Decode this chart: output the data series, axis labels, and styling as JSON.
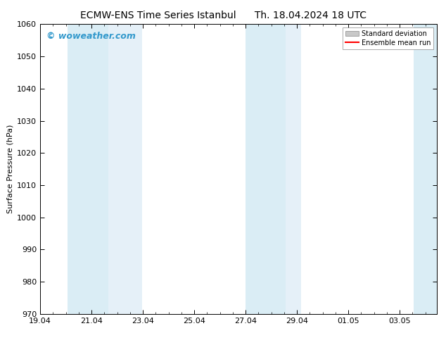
{
  "title_left": "ECMW-ENS Time Series Istanbul",
  "title_right": "Th. 18.04.2024 18 UTC",
  "ylabel": "Surface Pressure (hPa)",
  "ylim": [
    970,
    1060
  ],
  "yticks": [
    970,
    980,
    990,
    1000,
    1010,
    1020,
    1030,
    1040,
    1050,
    1060
  ],
  "xtick_labels": [
    "19.04",
    "21.04",
    "23.04",
    "25.04",
    "27.04",
    "29.04",
    "01.05",
    "03.05"
  ],
  "xtick_positions": [
    19.04,
    21.04,
    23.04,
    25.04,
    27.04,
    29.04,
    31.04,
    33.04
  ],
  "xlim_min": 19.04,
  "xlim_max": 34.5,
  "shaded_bands": [
    {
      "x_start": 20.04,
      "x_end": 21.54,
      "color": "#daeaf5"
    },
    {
      "x_start": 21.54,
      "x_end": 23.04,
      "color": "#daeaf5"
    },
    {
      "x_start": 27.04,
      "x_end": 28.54,
      "color": "#daeaf5"
    },
    {
      "x_start": 28.54,
      "x_end": 29.04,
      "color": "#daeaf5"
    },
    {
      "x_start": 33.54,
      "x_end": 34.5,
      "color": "#daeaf5"
    }
  ],
  "watermark_text": "© woweather.com",
  "watermark_color": "#3399cc",
  "bg_color": "#ffffff",
  "legend_std_color": "#c8c8c8",
  "legend_mean_color": "#ff0000",
  "title_fontsize": 10,
  "ylabel_fontsize": 8,
  "tick_fontsize": 8,
  "watermark_fontsize": 9
}
